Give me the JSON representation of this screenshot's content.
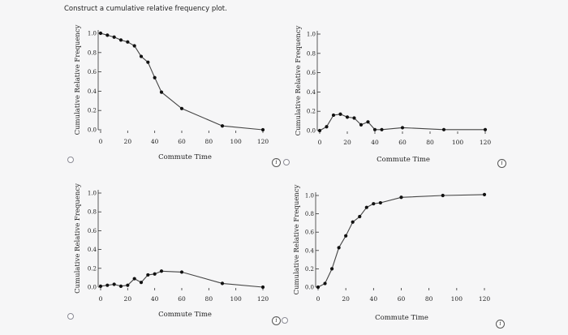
{
  "prompt": "Construct a cumulative relative frequency plot.",
  "options": [
    {
      "id": "a",
      "selected": false
    },
    {
      "id": "b",
      "selected": false
    },
    {
      "id": "c",
      "selected": false
    },
    {
      "id": "d",
      "selected": false
    }
  ],
  "info_icon": "info-icon",
  "colors": {
    "line": "#444444",
    "marker": "#111111",
    "axis": "#333333"
  },
  "chart_data": [
    {
      "type": "line",
      "xlabel": "Commute Time",
      "ylabel": "Cumulative Relative Frequency",
      "x_ticks": [
        "0",
        "20",
        "40",
        "60",
        "80",
        "100",
        "120"
      ],
      "y_ticks": [
        "0.0",
        "0.2",
        "0.4",
        "0.6",
        "0.8",
        "1.0"
      ],
      "xlim": [
        0,
        120
      ],
      "ylim": [
        0,
        1
      ],
      "x": [
        0,
        5,
        10,
        15,
        20,
        25,
        30,
        35,
        40,
        45,
        60,
        90,
        120
      ],
      "y": [
        1.0,
        0.98,
        0.96,
        0.93,
        0.91,
        0.87,
        0.76,
        0.7,
        0.54,
        0.39,
        0.22,
        0.04,
        0.0
      ]
    },
    {
      "type": "line",
      "xlabel": "Commute Time",
      "ylabel": "Cumulative Relative Frequency",
      "x_ticks": [
        "0",
        "20",
        "40",
        "60",
        "80",
        "100",
        "120"
      ],
      "y_ticks": [
        "0.0",
        "0.2",
        "0.4",
        "0.6",
        "0.8",
        "1.0"
      ],
      "xlim": [
        0,
        120
      ],
      "ylim": [
        0,
        1
      ],
      "x": [
        0,
        5,
        10,
        15,
        20,
        25,
        30,
        35,
        40,
        45,
        60,
        90,
        120
      ],
      "y": [
        0.0,
        0.04,
        0.16,
        0.17,
        0.14,
        0.13,
        0.06,
        0.09,
        0.01,
        0.01,
        0.03,
        0.01,
        0.01
      ]
    },
    {
      "type": "line",
      "xlabel": "Commute Time",
      "ylabel": "Cumulative Relative Frequency",
      "x_ticks": [
        "0",
        "20",
        "40",
        "60",
        "80",
        "100",
        "120"
      ],
      "y_ticks": [
        "0.0",
        "0.2",
        "0.4",
        "0.6",
        "0.8",
        "1.0"
      ],
      "xlim": [
        0,
        120
      ],
      "ylim": [
        0,
        1
      ],
      "x": [
        0,
        5,
        10,
        15,
        20,
        25,
        30,
        35,
        40,
        45,
        60,
        90,
        120
      ],
      "y": [
        0.01,
        0.02,
        0.03,
        0.01,
        0.02,
        0.09,
        0.05,
        0.13,
        0.14,
        0.17,
        0.16,
        0.04,
        0.0
      ]
    },
    {
      "type": "line",
      "xlabel": "Commute Time",
      "ylabel": "Cumulative Relative Frequency",
      "x_ticks": [
        "0",
        "20",
        "40",
        "60",
        "80",
        "100",
        "120"
      ],
      "y_ticks": [
        "0.0",
        "0.2",
        "0.4",
        "0.6",
        "0.8",
        "1.0"
      ],
      "xlim": [
        0,
        120
      ],
      "ylim": [
        0,
        1
      ],
      "x": [
        0,
        5,
        10,
        15,
        20,
        25,
        30,
        35,
        40,
        45,
        60,
        90,
        120
      ],
      "y": [
        0.0,
        0.04,
        0.2,
        0.43,
        0.56,
        0.71,
        0.77,
        0.87,
        0.91,
        0.92,
        0.98,
        1.0,
        1.01
      ]
    }
  ]
}
